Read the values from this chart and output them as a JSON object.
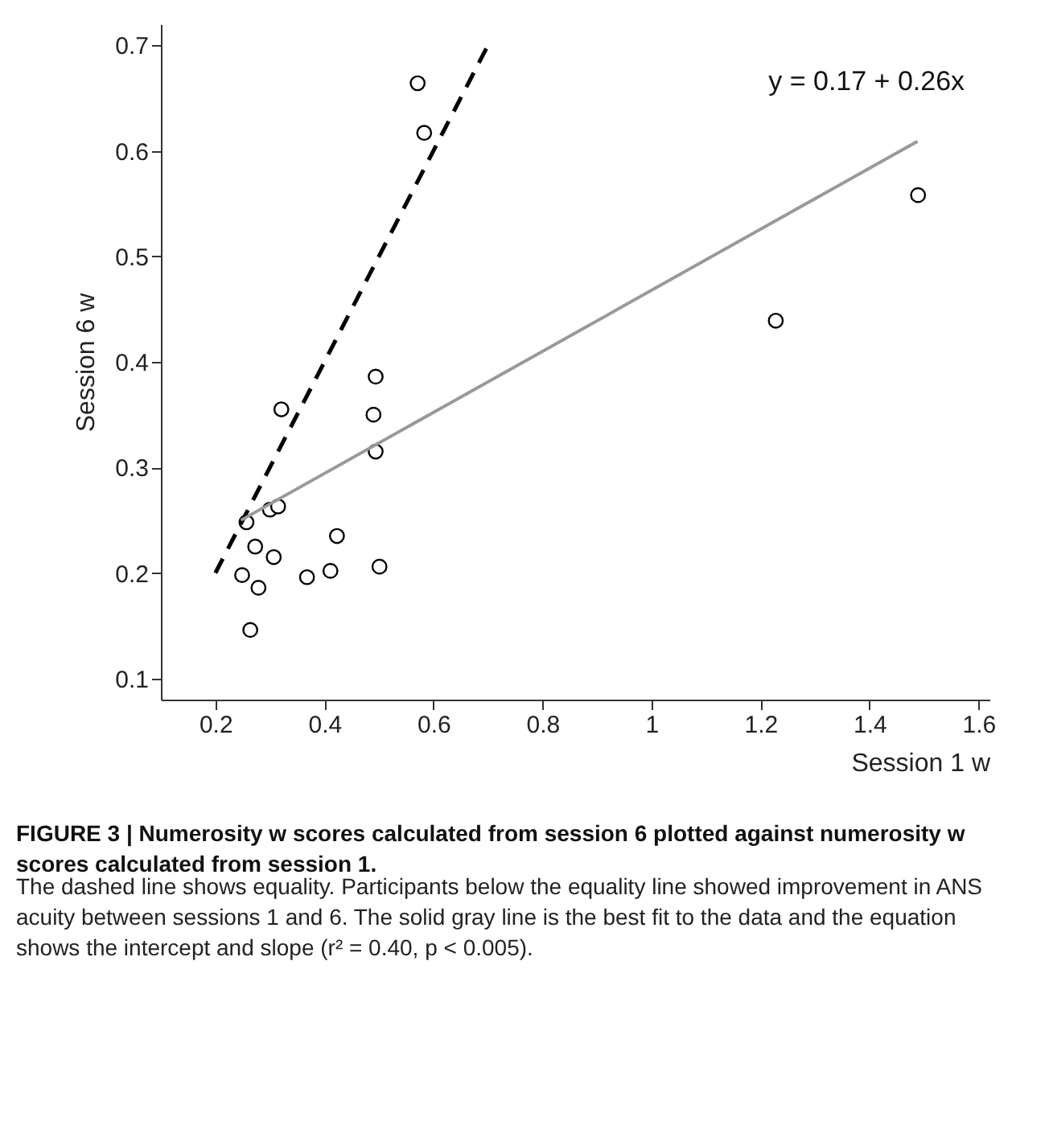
{
  "chart_data": {
    "type": "scatter",
    "title": "FIGURE 3 | Numerosity w scores calculated from session 6 plotted against numerosity w scores calculated from session 1.",
    "subtitle": "The dashed line shows equality. Participants below the equality line showed improvement in ANS acuity between sessions 1 and 6. The solid gray line is the best fit to the data and the equation shows the intercept and slope (r² = 0.40, p < 0.005).",
    "xlabel": "Session 1 w",
    "ylabel": "Session 6 w",
    "x": [
      0.571,
      0.583,
      0.494,
      0.321,
      0.49,
      0.494,
      0.257,
      0.3,
      0.315,
      0.273,
      0.307,
      0.423,
      0.249,
      0.279,
      0.368,
      0.411,
      0.501,
      0.264,
      1.228,
      1.489
    ],
    "series": [
      {
        "color": "#000000",
        "marker": "circle",
        "values": [
          0.664,
          0.617,
          0.386,
          0.355,
          0.35,
          0.315,
          0.248,
          0.26,
          0.263,
          0.225,
          0.215,
          0.235,
          0.198,
          0.186,
          0.196,
          0.202,
          0.206,
          0.146,
          0.439,
          0.558
        ]
      },
      {
        "type": "line",
        "color": "#000000",
        "line_style": "dashed",
        "x": [
          0.2,
          0.7
        ],
        "values": [
          0.2,
          0.7
        ]
      },
      {
        "type": "line",
        "color": "#999999",
        "line_style": "solid",
        "x": [
          0.247,
          1.488
        ],
        "values": [
          0.25,
          0.609
        ]
      }
    ],
    "annotations": [
      "y = 0.17 + 0.26x"
    ],
    "xlim": [
      0.1,
      1.62
    ],
    "xticks": [
      0.2,
      0.4,
      0.6,
      0.8,
      1,
      1.2,
      1.4,
      1.6
    ],
    "ylim": [
      0.08,
      0.72
    ],
    "yticks": [
      0.1,
      0.2,
      0.3,
      0.4,
      0.5,
      0.6,
      0.7
    ],
    "grid": false
  }
}
